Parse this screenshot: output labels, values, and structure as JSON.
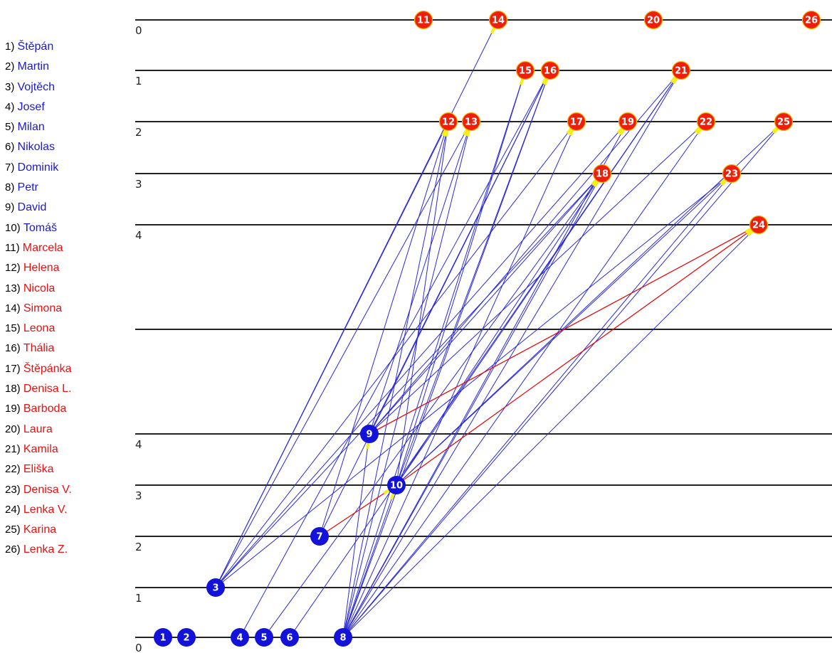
{
  "legend": [
    {
      "num": "1)",
      "name": "Štěpán",
      "group": "boy"
    },
    {
      "num": "2)",
      "name": "Martin",
      "group": "boy"
    },
    {
      "num": "3)",
      "name": "Vojtěch",
      "group": "boy"
    },
    {
      "num": "4)",
      "name": "Josef",
      "group": "boy"
    },
    {
      "num": "5)",
      "name": "Milan",
      "group": "boy"
    },
    {
      "num": "6)",
      "name": "Nikolas",
      "group": "boy"
    },
    {
      "num": "7)",
      "name": "Dominik",
      "group": "boy"
    },
    {
      "num": "8)",
      "name": "Petr",
      "group": "boy"
    },
    {
      "num": "9)",
      "name": "David",
      "group": "boy"
    },
    {
      "num": "10)",
      "name": "Tomáš",
      "group": "boy"
    },
    {
      "num": "11)",
      "name": "Marcela",
      "group": "girl"
    },
    {
      "num": "12)",
      "name": "Helena",
      "group": "girl"
    },
    {
      "num": "13)",
      "name": "Nicola",
      "group": "girl"
    },
    {
      "num": "14)",
      "name": "Simona",
      "group": "girl"
    },
    {
      "num": "15)",
      "name": "Leona",
      "group": "girl"
    },
    {
      "num": "16)",
      "name": "Thália",
      "group": "girl"
    },
    {
      "num": "17)",
      "name": "Štěpánka",
      "group": "girl"
    },
    {
      "num": "18)",
      "name": "Denisa L.",
      "group": "girl"
    },
    {
      "num": "19)",
      "name": "Barboda",
      "group": "girl"
    },
    {
      "num": "20)",
      "name": "Laura",
      "group": "girl"
    },
    {
      "num": "21)",
      "name": "Kamila",
      "group": "girl"
    },
    {
      "num": "22)",
      "name": "Eliška",
      "group": "girl"
    },
    {
      "num": "23)",
      "name": "Denisa V.",
      "group": "girl"
    },
    {
      "num": "24)",
      "name": "Lenka V.",
      "group": "girl"
    },
    {
      "num": "25)",
      "name": "Karina",
      "group": "girl"
    },
    {
      "num": "26)",
      "name": "Lenka Z.",
      "group": "girl"
    }
  ],
  "top_levels": [
    "0",
    "1",
    "2",
    "3",
    "4"
  ],
  "bottom_levels": [
    "4",
    "3",
    "2",
    "1",
    "0"
  ],
  "girls": [
    {
      "id": "11",
      "level": 0
    },
    {
      "id": "14",
      "level": 0
    },
    {
      "id": "20",
      "level": 0
    },
    {
      "id": "26",
      "level": 0
    },
    {
      "id": "15",
      "level": 1
    },
    {
      "id": "16",
      "level": 1
    },
    {
      "id": "21",
      "level": 1
    },
    {
      "id": "12",
      "level": 2
    },
    {
      "id": "13",
      "level": 2
    },
    {
      "id": "17",
      "level": 2
    },
    {
      "id": "19",
      "level": 2
    },
    {
      "id": "22",
      "level": 2
    },
    {
      "id": "25",
      "level": 2
    },
    {
      "id": "18",
      "level": 3
    },
    {
      "id": "23",
      "level": 3
    },
    {
      "id": "24",
      "level": 4
    }
  ],
  "boys": [
    {
      "id": "1",
      "level": 0
    },
    {
      "id": "2",
      "level": 0
    },
    {
      "id": "4",
      "level": 0
    },
    {
      "id": "5",
      "level": 0
    },
    {
      "id": "6",
      "level": 0
    },
    {
      "id": "8",
      "level": 0
    },
    {
      "id": "3",
      "level": 1
    },
    {
      "id": "7",
      "level": 2
    },
    {
      "id": "10",
      "level": 3
    },
    {
      "id": "9",
      "level": 4
    }
  ],
  "edges": [
    [
      "3",
      "12"
    ],
    [
      "3",
      "13"
    ],
    [
      "3",
      "14"
    ],
    [
      "3",
      "17"
    ],
    [
      "3",
      "18"
    ],
    [
      "3",
      "23"
    ],
    [
      "3",
      "19"
    ],
    [
      "8",
      "12"
    ],
    [
      "8",
      "13"
    ],
    [
      "8",
      "15"
    ],
    [
      "8",
      "16"
    ],
    [
      "8",
      "17"
    ],
    [
      "8",
      "18"
    ],
    [
      "8",
      "19"
    ],
    [
      "8",
      "21"
    ],
    [
      "8",
      "22"
    ],
    [
      "8",
      "23"
    ],
    [
      "8",
      "24"
    ],
    [
      "8",
      "25"
    ],
    [
      "8",
      "9"
    ],
    [
      "8",
      "10"
    ],
    [
      "10",
      "15"
    ],
    [
      "10",
      "16"
    ],
    [
      "10",
      "18"
    ],
    [
      "10",
      "21"
    ],
    [
      "10",
      "23"
    ],
    [
      "10",
      "25"
    ],
    [
      "10",
      "12"
    ],
    [
      "9",
      "16"
    ],
    [
      "9",
      "18"
    ],
    [
      "9",
      "21"
    ],
    [
      "9",
      "22"
    ],
    [
      "9",
      "13"
    ],
    [
      "7",
      "12"
    ],
    [
      "7",
      "16"
    ],
    [
      "4",
      "16"
    ],
    [
      "5",
      "18"
    ],
    [
      "6",
      "21"
    ]
  ],
  "mutual_edges": [
    [
      "9",
      "24"
    ],
    [
      "10",
      "24"
    ],
    [
      "7",
      "10"
    ]
  ],
  "colors": {
    "boy_node": "#1212d8",
    "girl_node": "#ee1f0a",
    "girl_node_ring": "#f6b400",
    "edge": "#2a2ad8",
    "mutual_edge": "#e01010",
    "arrow_head": "#f2ef1a",
    "level_line": "#222222",
    "boy_text": "#1a1ad0",
    "girl_text": "#e81010"
  }
}
